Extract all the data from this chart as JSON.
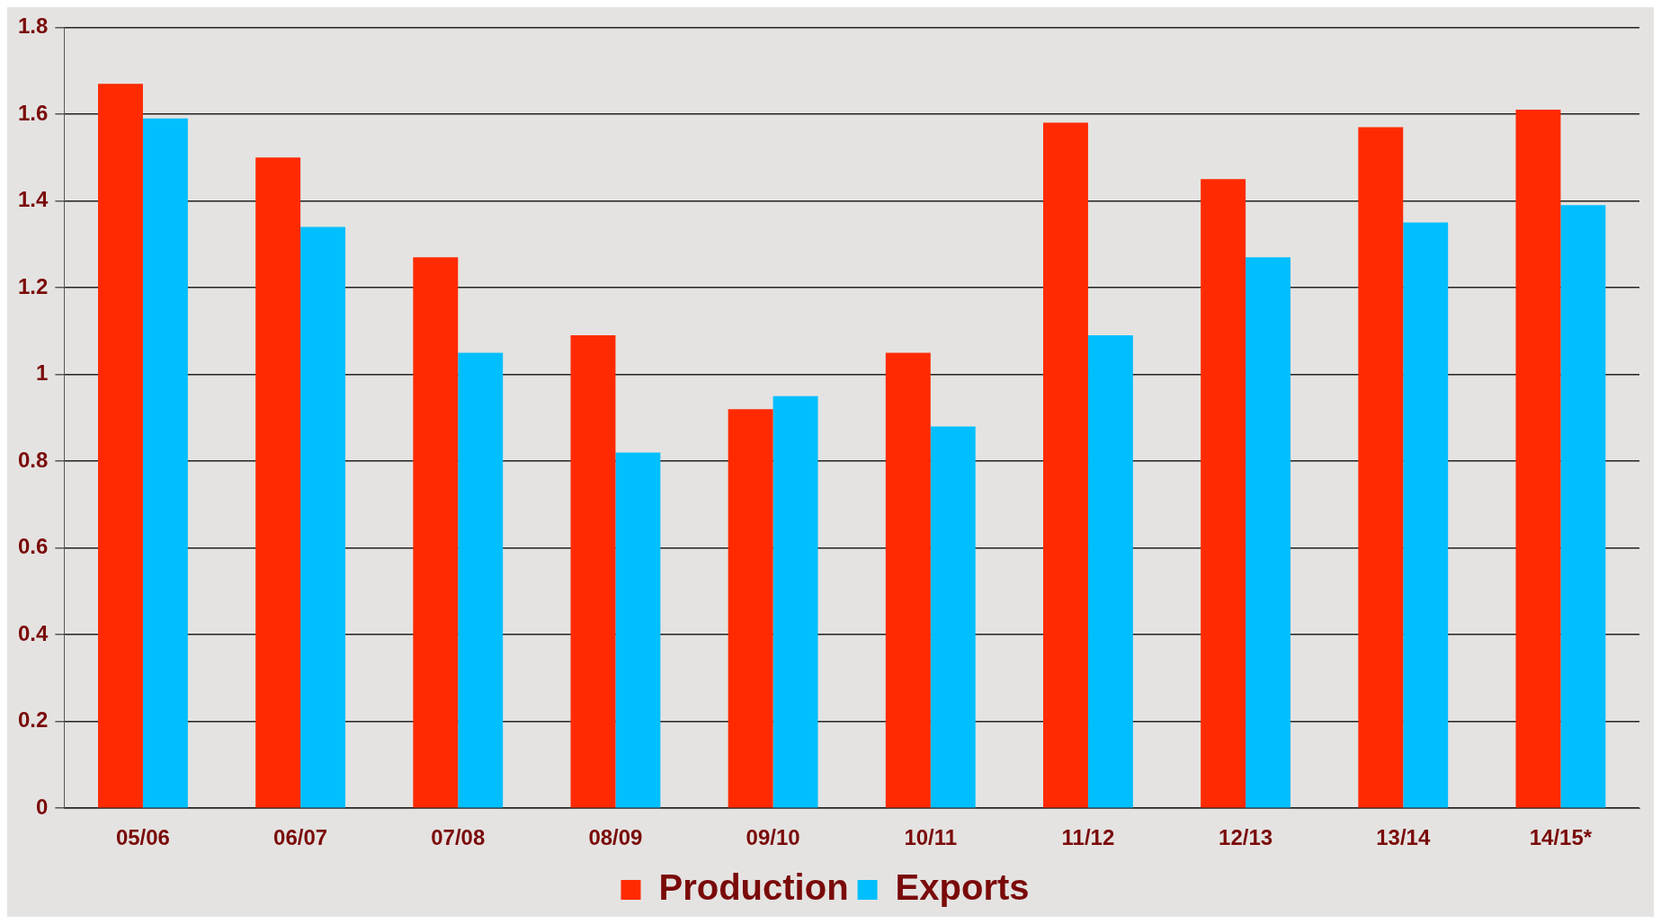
{
  "chart_data": {
    "type": "bar",
    "categories": [
      "05/06",
      "06/07",
      "07/08",
      "08/09",
      "09/10",
      "10/11",
      "11/12",
      "12/13",
      "13/14",
      "14/15*"
    ],
    "series": [
      {
        "name": "Production",
        "color": "#ff2a00",
        "values": [
          1.67,
          1.5,
          1.27,
          1.09,
          0.92,
          1.05,
          1.58,
          1.45,
          1.57,
          1.61
        ]
      },
      {
        "name": "Exports",
        "color": "#00bfff",
        "values": [
          1.59,
          1.34,
          1.05,
          0.82,
          0.95,
          0.88,
          1.09,
          1.27,
          1.35,
          1.39
        ]
      }
    ],
    "ylim": [
      0,
      1.8
    ],
    "yticks": [
      0,
      0.2,
      0.4,
      0.6,
      0.8,
      1,
      1.2,
      1.4,
      1.6,
      1.8
    ],
    "grid": "y",
    "legend": "bottom"
  }
}
